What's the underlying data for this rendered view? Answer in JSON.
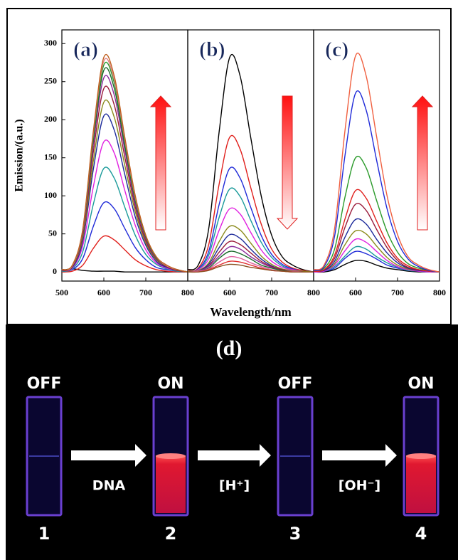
{
  "chart_data": [
    {
      "type": "line",
      "label": "(a)",
      "ylabel": "Emission/(a.u.)",
      "xlabel": "Wavelength/nm",
      "x": [
        500,
        525,
        550,
        575,
        600,
        625,
        650,
        675,
        700,
        725,
        750,
        775,
        800
      ],
      "xlim": [
        500,
        800
      ],
      "xticks": [
        500,
        600,
        700,
        800
      ],
      "ylim": [
        -12,
        318
      ],
      "yticks": [
        0,
        50,
        100,
        150,
        200,
        250,
        300
      ],
      "series": [
        {
          "color": "#000000",
          "values": [
            2,
            4,
            2,
            1,
            1,
            1,
            0,
            0,
            0,
            0,
            0,
            0,
            0
          ]
        },
        {
          "color": "#e0201c",
          "values": [
            0,
            1,
            9,
            31,
            47,
            42,
            29,
            16,
            8,
            3,
            1,
            0,
            0
          ]
        },
        {
          "color": "#1f2ad8",
          "values": [
            1,
            3,
            18,
            60,
            91,
            83,
            57,
            32,
            16,
            6,
            3,
            1,
            0
          ]
        },
        {
          "color": "#1a9a9a",
          "values": [
            1,
            4,
            27,
            89,
            136,
            123,
            85,
            48,
            23,
            10,
            4,
            1,
            0
          ]
        },
        {
          "color": "#e020e0",
          "values": [
            2,
            5,
            35,
            112,
            171,
            156,
            107,
            61,
            29,
            12,
            5,
            2,
            0
          ]
        },
        {
          "color": "#1c2a9a",
          "values": [
            2,
            6,
            41,
            135,
            205,
            186,
            128,
            72,
            35,
            14,
            6,
            2,
            0
          ]
        },
        {
          "color": "#8a8a1a",
          "values": [
            2,
            7,
            45,
            146,
            223,
            203,
            140,
            79,
            38,
            16,
            7,
            2,
            0
          ]
        },
        {
          "color": "#9a1a3a",
          "values": [
            2,
            7,
            49,
            158,
            241,
            219,
            151,
            85,
            41,
            17,
            7,
            2,
            0
          ]
        },
        {
          "color": "#8a2a9a",
          "values": [
            3,
            8,
            52,
            168,
            255,
            232,
            160,
            90,
            44,
            18,
            8,
            3,
            0
          ]
        },
        {
          "color": "#1a6a2a",
          "values": [
            3,
            8,
            54,
            174,
            265,
            241,
            166,
            94,
            46,
            19,
            8,
            3,
            0
          ]
        },
        {
          "color": "#2a9a2a",
          "values": [
            3,
            8,
            55,
            179,
            272,
            248,
            171,
            96,
            47,
            19,
            8,
            3,
            0
          ]
        },
        {
          "color": "#e08080",
          "values": [
            3,
            8,
            56,
            182,
            277,
            252,
            174,
            98,
            48,
            20,
            8,
            3,
            0
          ]
        },
        {
          "color": "#c06020",
          "values": [
            3,
            9,
            57,
            185,
            282,
            257,
            177,
            100,
            48,
            20,
            9,
            3,
            0
          ]
        }
      ]
    },
    {
      "type": "line",
      "label": "(b)",
      "x": [
        500,
        525,
        550,
        575,
        600,
        625,
        650,
        675,
        700,
        725,
        750,
        775,
        800
      ],
      "xlim": [
        500,
        800
      ],
      "xticks": [
        600,
        700,
        800
      ],
      "ylim": [
        -12,
        318
      ],
      "series": [
        {
          "color": "#000000",
          "values": [
            3,
            9,
            57,
            185,
            282,
            257,
            177,
            100,
            48,
            20,
            9,
            3,
            0
          ]
        },
        {
          "color": "#e0201c",
          "values": [
            2,
            5,
            36,
            116,
            177,
            161,
            111,
            63,
            30,
            13,
            5,
            2,
            0
          ]
        },
        {
          "color": "#1f2ad8",
          "values": [
            1,
            4,
            27,
            89,
            136,
            123,
            85,
            48,
            23,
            10,
            4,
            1,
            0
          ]
        },
        {
          "color": "#1a9a9a",
          "values": [
            1,
            3,
            22,
            72,
            109,
            99,
            68,
            39,
            19,
            8,
            3,
            1,
            0
          ]
        },
        {
          "color": "#e020e0",
          "values": [
            1,
            3,
            17,
            55,
            83,
            76,
            52,
            29,
            14,
            6,
            3,
            1,
            0
          ]
        },
        {
          "color": "#8a8a1a",
          "values": [
            1,
            2,
            12,
            40,
            60,
            55,
            38,
            21,
            10,
            4,
            2,
            1,
            0
          ]
        },
        {
          "color": "#1c2a9a",
          "values": [
            0,
            1,
            10,
            32,
            49,
            44,
            30,
            17,
            8,
            3,
            1,
            0,
            0
          ]
        },
        {
          "color": "#9a1a3a",
          "values": [
            0,
            1,
            8,
            26,
            40,
            36,
            25,
            14,
            7,
            3,
            1,
            0,
            0
          ]
        },
        {
          "color": "#8a2a9a",
          "values": [
            0,
            1,
            7,
            21,
            33,
            30,
            20,
            12,
            6,
            2,
            1,
            0,
            0
          ]
        },
        {
          "color": "#1a6a2a",
          "values": [
            0,
            1,
            5,
            18,
            27,
            24,
            17,
            9,
            5,
            2,
            1,
            0,
            0
          ]
        },
        {
          "color": "#e060a0",
          "values": [
            0,
            1,
            4,
            13,
            20,
            18,
            12,
            7,
            3,
            1,
            1,
            0,
            0
          ]
        },
        {
          "color": "#e03030",
          "values": [
            0,
            0,
            3,
            9,
            14,
            13,
            9,
            5,
            2,
            1,
            0,
            0,
            0
          ]
        },
        {
          "color": "#8a5020",
          "values": [
            0,
            0,
            2,
            7,
            10,
            9,
            6,
            4,
            2,
            1,
            0,
            0,
            0
          ]
        }
      ]
    },
    {
      "type": "line",
      "label": "(c)",
      "x": [
        500,
        525,
        550,
        575,
        600,
        625,
        650,
        675,
        700,
        725,
        750,
        775,
        800
      ],
      "xlim": [
        500,
        800
      ],
      "xticks": [
        600,
        700,
        800
      ],
      "ylim": [
        -12,
        318
      ],
      "series": [
        {
          "color": "#000000",
          "values": [
            0,
            0,
            3,
            10,
            15,
            14,
            9,
            5,
            3,
            1,
            0,
            0,
            0
          ]
        },
        {
          "color": "#1f2ad8",
          "values": [
            0,
            1,
            5,
            18,
            27,
            24,
            17,
            9,
            5,
            2,
            1,
            0,
            0
          ]
        },
        {
          "color": "#1a9a9a",
          "values": [
            0,
            1,
            7,
            21,
            33,
            30,
            20,
            12,
            6,
            2,
            1,
            0,
            0
          ]
        },
        {
          "color": "#e020e0",
          "values": [
            0,
            1,
            9,
            28,
            43,
            39,
            27,
            15,
            7,
            3,
            1,
            0,
            0
          ]
        },
        {
          "color": "#8a8a1a",
          "values": [
            1,
            2,
            11,
            36,
            54,
            50,
            34,
            19,
            9,
            4,
            2,
            1,
            0
          ]
        },
        {
          "color": "#1c2a9a",
          "values": [
            1,
            2,
            14,
            46,
            69,
            63,
            43,
            25,
            12,
            5,
            2,
            1,
            0
          ]
        },
        {
          "color": "#9a1a3a",
          "values": [
            1,
            3,
            18,
            59,
            89,
            81,
            56,
            32,
            15,
            6,
            3,
            1,
            0
          ]
        },
        {
          "color": "#e0201c",
          "values": [
            1,
            3,
            22,
            70,
            107,
            97,
            67,
            38,
            18,
            8,
            3,
            1,
            0
          ]
        },
        {
          "color": "#2a9a2a",
          "values": [
            2,
            5,
            30,
            99,
            150,
            137,
            94,
            53,
            26,
            11,
            5,
            2,
            0
          ]
        },
        {
          "color": "#1f2ad8",
          "values": [
            2,
            7,
            47,
            154,
            235,
            213,
            147,
            83,
            40,
            17,
            7,
            2,
            0
          ]
        },
        {
          "color": "#f06040",
          "values": [
            3,
            9,
            57,
            187,
            284,
            258,
            178,
            100,
            49,
            20,
            9,
            3,
            0
          ]
        }
      ]
    }
  ],
  "photo": {
    "label": "(d)",
    "cuvettes": [
      {
        "state": "OFF",
        "number": "1"
      },
      {
        "state": "ON",
        "number": "2"
      },
      {
        "state": "OFF",
        "number": "3"
      },
      {
        "state": "ON",
        "number": "4"
      }
    ],
    "steps": [
      "DNA",
      "[H⁺]",
      "[OH⁻]"
    ]
  }
}
